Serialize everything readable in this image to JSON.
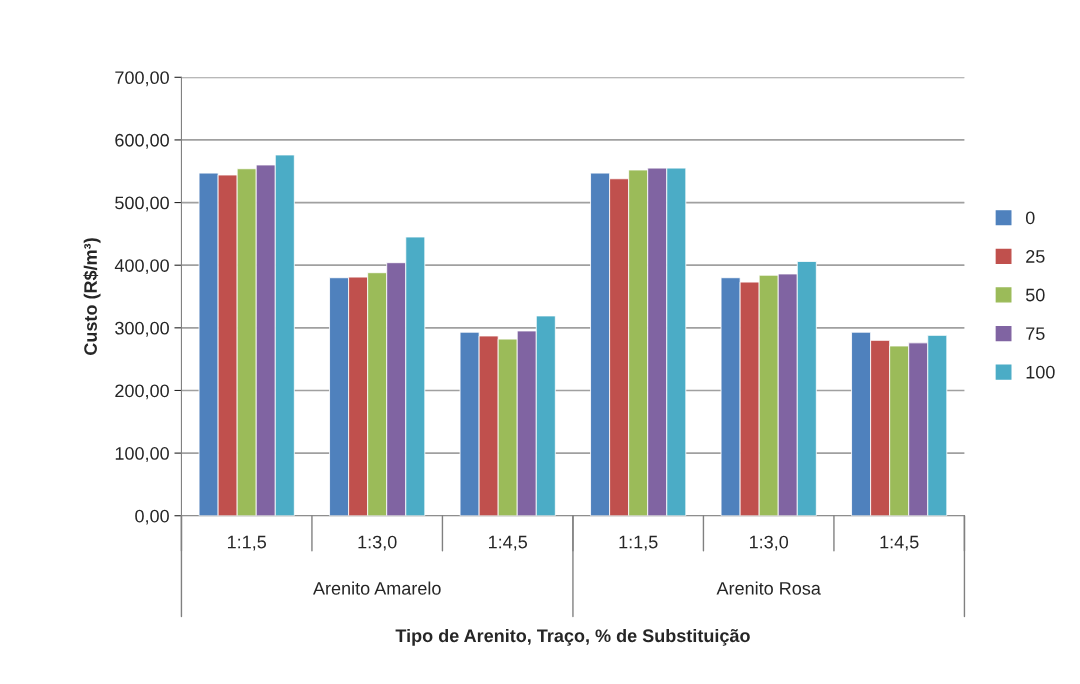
{
  "chart_data": {
    "type": "bar",
    "categories": [
      "1:1,5",
      "1:3,0",
      "1:4,5",
      "1:1,5",
      "1:3,0",
      "1:4,5"
    ],
    "series": [
      {
        "name": "0",
        "color": "#4f81bd",
        "values": [
          547,
          380,
          293,
          547,
          380,
          293
        ]
      },
      {
        "name": "25",
        "color": "#c0504d",
        "values": [
          544,
          381,
          287,
          538,
          373,
          280
        ]
      },
      {
        "name": "50",
        "color": "#9bbb59",
        "values": [
          554,
          388,
          282,
          552,
          384,
          271
        ]
      },
      {
        "name": "75",
        "color": "#8064a2",
        "values": [
          560,
          404,
          295,
          555,
          386,
          276
        ]
      },
      {
        "name": "100",
        "color": "#4bacc6",
        "values": [
          576,
          445,
          319,
          555,
          406,
          288
        ]
      }
    ],
    "ylabel": "Custo (R$/m³)",
    "xlabel": "Tipo de Arenito, Traço, % de Substituição",
    "annotations": [
      "Arenito Amarelo",
      "Arenito Rosa"
    ],
    "ylim": [
      0,
      700
    ],
    "yticks": [
      {
        "value": 0,
        "label": "0,00"
      },
      {
        "value": 100,
        "label": "100,00"
      },
      {
        "value": 200,
        "label": "200,00"
      },
      {
        "value": 300,
        "label": "300,00"
      },
      {
        "value": 400,
        "label": "400,00"
      },
      {
        "value": 500,
        "label": "500,00"
      },
      {
        "value": 600,
        "label": "600,00"
      },
      {
        "value": 700,
        "label": "700,00"
      }
    ],
    "grid": "y",
    "legend": "right"
  }
}
